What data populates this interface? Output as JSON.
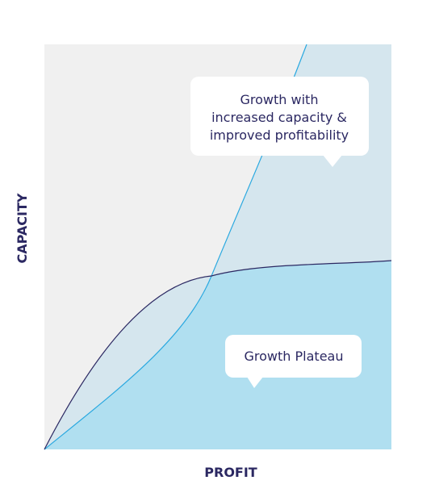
{
  "axes": {
    "y_label": "CAPACITY",
    "x_label": "PROFIT"
  },
  "callouts": [
    {
      "lines": [
        "Growth with",
        "increased capacity &",
        "improved profitability"
      ]
    },
    {
      "lines": [
        "Growth Plateau"
      ]
    }
  ]
}
